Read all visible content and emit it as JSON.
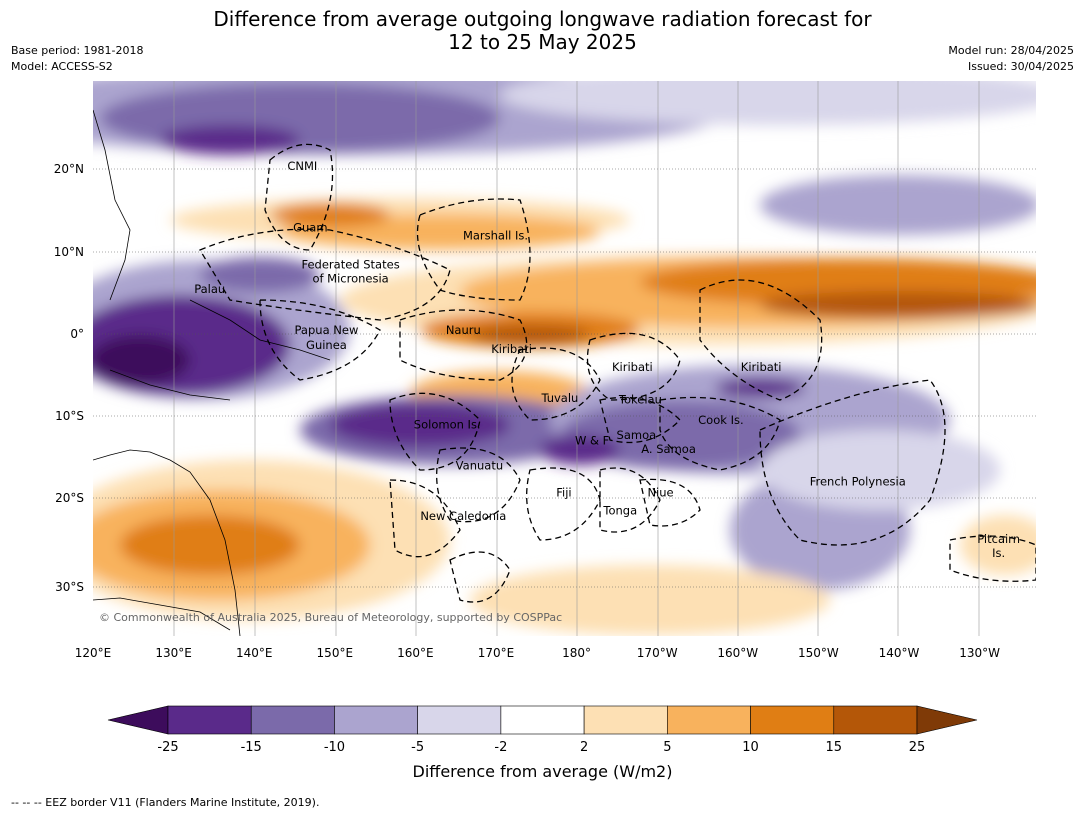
{
  "header": {
    "title_line1": "Difference from average outgoing longwave radiation forecast for",
    "title_line2": "12 to 25 May 2025",
    "base_period": "Base period: 1981-2018",
    "model": "Model: ACCESS-S2",
    "model_run": "Model run: 28/04/2025",
    "issued": "Issued: 30/04/2025"
  },
  "map": {
    "lon_ticks": [
      "120°E",
      "130°E",
      "140°E",
      "150°E",
      "160°E",
      "170°E",
      "180°",
      "170°W",
      "160°W",
      "150°W",
      "140°W",
      "130°W"
    ],
    "lat_ticks": [
      "20°N",
      "10°N",
      "0°",
      "10°S",
      "20°S",
      "30°S"
    ],
    "copyright": "© Commonwealth of Australia 2025, Bureau of Meteorology, supported by COSPPac",
    "regions": [
      {
        "name": "CNMI",
        "lon": 146,
        "lat": 20
      },
      {
        "name": "Guam",
        "lon": 147,
        "lat": 12.5
      },
      {
        "name": "Marshall Is.",
        "lon": 170,
        "lat": 11.5
      },
      {
        "name": "Federated States",
        "lon": 152,
        "lat": 8
      },
      {
        "name": "of Micronesia",
        "lon": 152,
        "lat": 6.3
      },
      {
        "name": "Palau",
        "lon": 134.5,
        "lat": 5
      },
      {
        "name": "Papua New",
        "lon": 149,
        "lat": 0
      },
      {
        "name": "Guinea",
        "lon": 149,
        "lat": -1.8
      },
      {
        "name": "Nauru",
        "lon": 166,
        "lat": 0
      },
      {
        "name": "Kiribati",
        "lon": 172,
        "lat": -2.3
      },
      {
        "name": "Kiribati",
        "lon": -173,
        "lat": -4.5
      },
      {
        "name": "Kiribati",
        "lon": -157,
        "lat": -4.5
      },
      {
        "name": "Tuvalu",
        "lon": 178,
        "lat": -8.3
      },
      {
        "name": "Tokelau",
        "lon": -172,
        "lat": -8.5
      },
      {
        "name": "Cook Is.",
        "lon": -162,
        "lat": -11
      },
      {
        "name": "Solomon Is.",
        "lon": 164,
        "lat": -11.5
      },
      {
        "name": "W & F",
        "lon": -178,
        "lat": -13.5
      },
      {
        "name": "Samoa",
        "lon": -172.5,
        "lat": -12.8
      },
      {
        "name": "A. Samoa",
        "lon": -168.5,
        "lat": -14.5
      },
      {
        "name": "Vanuatu",
        "lon": 168,
        "lat": -16.5
      },
      {
        "name": "French Polynesia",
        "lon": -145,
        "lat": -18.5
      },
      {
        "name": "Fiji",
        "lon": 178.5,
        "lat": -19.8
      },
      {
        "name": "Niue",
        "lon": -169.5,
        "lat": -19.8
      },
      {
        "name": "Tonga",
        "lon": -174.5,
        "lat": -22
      },
      {
        "name": "New Caledonia",
        "lon": 166,
        "lat": -22.7
      },
      {
        "name": "Pitcairn",
        "lon": -127.5,
        "lat": -25.5
      },
      {
        "name": "Is.",
        "lon": -127.5,
        "lat": -27.2
      }
    ]
  },
  "legend": {
    "title": "Difference from average (W/m2)",
    "ticks": [
      "-25",
      "-15",
      "-10",
      "-5",
      "-2",
      "2",
      "5",
      "10",
      "15",
      "25"
    ],
    "colors": [
      "#3d0c5c",
      "#5a2a8a",
      "#7b6aaa",
      "#aba4cf",
      "#d8d6ea",
      "#ffffff",
      "#fde0b4",
      "#f8b25d",
      "#e07e14",
      "#b45708",
      "#7f3a07"
    ]
  },
  "footer": {
    "eez_note": "--  --  -- EEZ border V11 (Flanders Marine Institute, 2019)."
  }
}
